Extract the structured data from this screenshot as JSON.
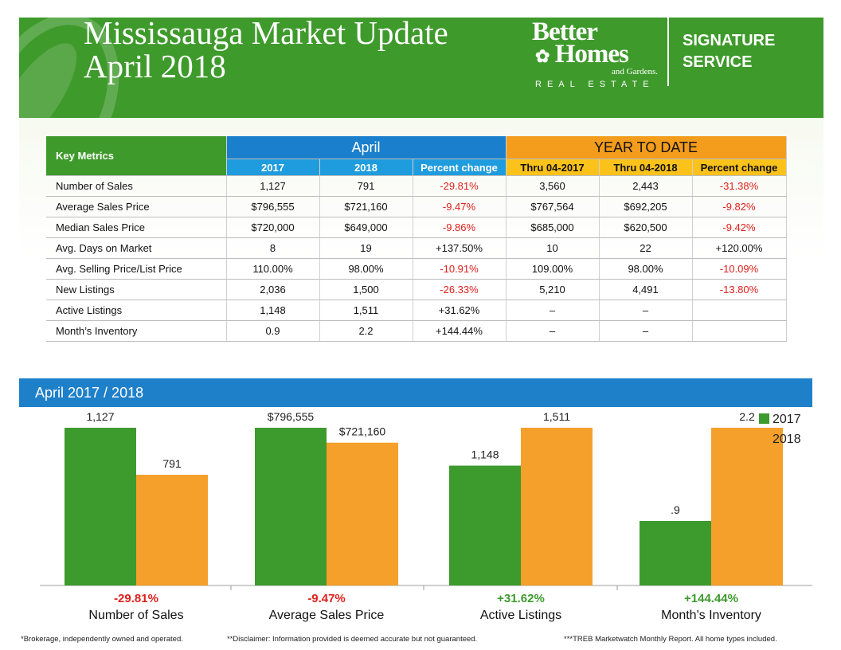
{
  "header": {
    "title_line1": "Mississauga Market Update",
    "title_line2": "April 2018",
    "logo_line1": "Better",
    "logo_line2": "Homes",
    "logo_line3": "and Gardens.",
    "logo_line4": "REAL ESTATE",
    "signature_line1": "SIGNATURE",
    "signature_line2": "SERVICE"
  },
  "table": {
    "key_metrics_label": "Key Metrics",
    "april_label": "April",
    "ytd_label": "YEAR TO DATE",
    "sub_headers": [
      "2017",
      "2018",
      "Percent change",
      "Thru 04-2017",
      "Thru 04-2018",
      "Percent change"
    ],
    "rows": [
      {
        "label": "Number of Sales",
        "values": [
          "1,127",
          "791",
          "-29.81%",
          "3,560",
          "2,443",
          "-31.38%"
        ]
      },
      {
        "label": "Average Sales Price",
        "values": [
          "$796,555",
          "$721,160",
          "-9.47%",
          "$767,564",
          "$692,205",
          "-9.82%"
        ]
      },
      {
        "label": "Median Sales Price",
        "values": [
          "$720,000",
          "$649,000",
          "-9.86%",
          "$685,000",
          "$620,500",
          "-9.42%"
        ]
      },
      {
        "label": "Avg. Days on Market",
        "values": [
          "8",
          "19",
          "+137.50%",
          "10",
          "22",
          "+120.00%"
        ]
      },
      {
        "label": "Avg. Selling Price/List Price",
        "values": [
          "110.00%",
          "98.00%",
          "-10.91%",
          "109.00%",
          "98.00%",
          "-10.09%"
        ]
      },
      {
        "label": "New Listings",
        "values": [
          "2,036",
          "1,500",
          "-26.33%",
          "5,210",
          "4,491",
          "-13.80%"
        ]
      },
      {
        "label": "Active Listings",
        "values": [
          "1,148",
          "1,511",
          "+31.62%",
          "–",
          "–",
          ""
        ]
      },
      {
        "label": "Month’s Inventory",
        "values": [
          "0.9",
          "2.2",
          "+144.44%",
          "–",
          "–",
          ""
        ]
      }
    ]
  },
  "chart_section": {
    "title": "April 2017 / 2018"
  },
  "chart_data": {
    "type": "bar",
    "categories": [
      "Number of Sales",
      "Average Sales Price",
      "Active Listings",
      "Month's Inventory"
    ],
    "series": [
      {
        "name": "2017",
        "values": [
          1127,
          796555,
          1148,
          0.9
        ],
        "labels": [
          "1,127",
          "$796,555",
          "1,148",
          ".9"
        ],
        "color": "#3d9a2d"
      },
      {
        "name": "2018",
        "values": [
          791,
          721160,
          1511,
          2.2
        ],
        "labels": [
          "791",
          "$721,160",
          "1,511",
          "2.2"
        ],
        "color": "#f5a02a"
      }
    ],
    "changes": [
      "-29.81%",
      "-9.47%",
      "+31.62%",
      "+144.44%"
    ],
    "change_colors": [
      "#e0201c",
      "#e0201c",
      "#3d9a2d",
      "#3d9a2d"
    ],
    "legend_position": "top-right",
    "grid": false
  },
  "footer": {
    "note1": "*Brokerage, independently owned and operated.",
    "note2": "**Disclaimer: Information provided is deemed accurate but not guaranteed.",
    "note3": "***TREB Marketwatch Monthly Report. All home types included."
  },
  "colors": {
    "green": "#3f9a2c",
    "blue": "#1f80ca",
    "orange": "#f5a02a",
    "negative": "#e0201c"
  }
}
